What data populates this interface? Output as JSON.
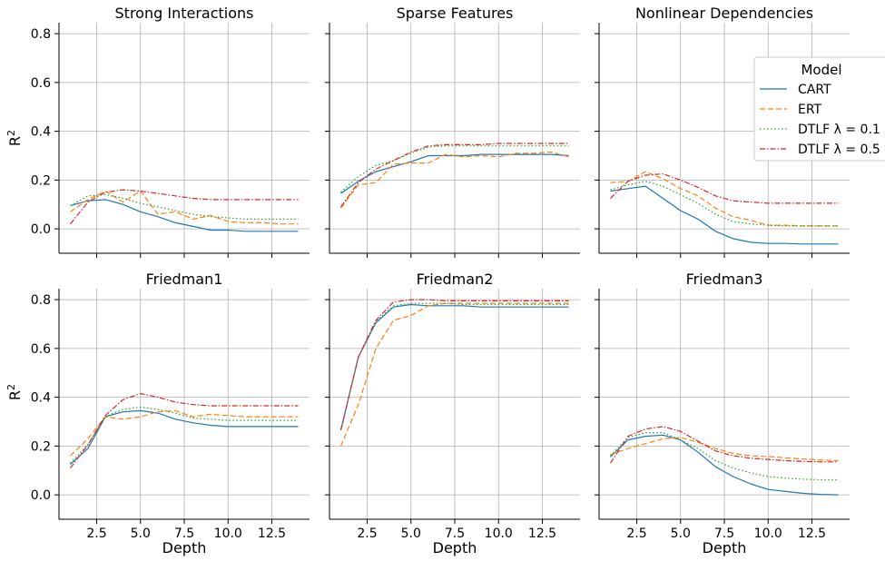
{
  "colors": {
    "CART": "#1f77b4",
    "ERT": "#ff7f0e",
    "DTLF01": "#2ca02c",
    "DTLF05": "#d62728"
  },
  "y_label": "R²",
  "x_label": "Depth",
  "legend": {
    "title": "Model",
    "placement": "upper-right of Nonlinear Dependencies panel",
    "entries": [
      "CART",
      "ERT",
      "DTLF λ = 0.1",
      "DTLF λ = 0.5"
    ]
  },
  "chart_data": [
    {
      "type": "line",
      "title": "Strong Interactions",
      "xlabel": "",
      "ylabel": "R²",
      "xlim": [
        0.35,
        14.65
      ],
      "ylim": [
        -0.1,
        0.845
      ],
      "xticks": [
        "2.5",
        "5.0",
        "7.5",
        "10.0",
        "12.5"
      ],
      "yticks": [
        "0.0",
        "0.2",
        "0.4",
        "0.6",
        "0.8"
      ],
      "x": [
        1,
        2,
        3,
        4,
        5,
        6,
        7,
        8,
        9,
        10,
        11,
        12,
        13,
        14
      ],
      "series": [
        {
          "name": "CART",
          "values": [
            0.095,
            0.115,
            0.12,
            0.1,
            0.07,
            0.05,
            0.025,
            0.01,
            -0.005,
            -0.005,
            -0.01,
            -0.01,
            -0.01,
            -0.01
          ]
        },
        {
          "name": "ERT",
          "values": [
            0.07,
            0.12,
            0.155,
            0.11,
            0.155,
            0.06,
            0.07,
            0.04,
            0.055,
            0.03,
            0.025,
            0.025,
            0.02,
            0.02
          ]
        },
        {
          "name": "DTLF λ = 0.1",
          "values": [
            0.095,
            0.135,
            0.14,
            0.125,
            0.105,
            0.09,
            0.075,
            0.06,
            0.05,
            0.045,
            0.04,
            0.04,
            0.04,
            0.04
          ]
        },
        {
          "name": "DTLF λ = 0.5",
          "values": [
            0.02,
            0.11,
            0.15,
            0.16,
            0.155,
            0.145,
            0.135,
            0.125,
            0.12,
            0.12,
            0.12,
            0.12,
            0.12,
            0.12
          ]
        }
      ]
    },
    {
      "type": "line",
      "title": "Sparse Features",
      "xlabel": "",
      "ylabel": "",
      "xlim": [
        0.35,
        14.65
      ],
      "ylim": [
        -0.1,
        0.845
      ],
      "xticks": [
        "2.5",
        "5.0",
        "7.5",
        "10.0",
        "12.5"
      ],
      "yticks": [
        "0.0",
        "0.2",
        "0.4",
        "0.6",
        "0.8"
      ],
      "x": [
        1,
        2,
        3,
        4,
        5,
        6,
        7,
        8,
        9,
        10,
        11,
        12,
        13,
        14
      ],
      "series": [
        {
          "name": "CART",
          "values": [
            0.145,
            0.195,
            0.235,
            0.255,
            0.275,
            0.3,
            0.3,
            0.3,
            0.305,
            0.305,
            0.305,
            0.305,
            0.305,
            0.3
          ]
        },
        {
          "name": "ERT",
          "values": [
            0.085,
            0.18,
            0.19,
            0.265,
            0.27,
            0.27,
            0.305,
            0.295,
            0.3,
            0.295,
            0.31,
            0.31,
            0.315,
            0.295
          ]
        },
        {
          "name": "DTLF λ = 0.1",
          "values": [
            0.15,
            0.215,
            0.26,
            0.28,
            0.31,
            0.335,
            0.34,
            0.34,
            0.34,
            0.34,
            0.34,
            0.34,
            0.34,
            0.34
          ]
        },
        {
          "name": "DTLF λ = 0.5",
          "values": [
            0.09,
            0.19,
            0.245,
            0.28,
            0.315,
            0.34,
            0.345,
            0.345,
            0.345,
            0.35,
            0.35,
            0.35,
            0.35,
            0.35
          ]
        }
      ]
    },
    {
      "type": "line",
      "title": "Nonlinear Dependencies",
      "xlabel": "",
      "ylabel": "",
      "xlim": [
        0.35,
        14.65
      ],
      "ylim": [
        -0.1,
        0.845
      ],
      "xticks": [
        "2.5",
        "5.0",
        "7.5",
        "10.0",
        "12.5"
      ],
      "yticks": [
        "0.0",
        "0.2",
        "0.4",
        "0.6",
        "0.8"
      ],
      "x": [
        1,
        2,
        3,
        4,
        5,
        6,
        7,
        8,
        9,
        10,
        11,
        12,
        13,
        14
      ],
      "series": [
        {
          "name": "CART",
          "values": [
            0.155,
            0.165,
            0.175,
            0.125,
            0.075,
            0.04,
            -0.01,
            -0.04,
            -0.055,
            -0.06,
            -0.06,
            -0.062,
            -0.062,
            -0.062
          ]
        },
        {
          "name": "ERT",
          "values": [
            0.19,
            0.195,
            0.235,
            0.205,
            0.165,
            0.135,
            0.085,
            0.05,
            0.035,
            0.015,
            0.015,
            0.012,
            0.012,
            0.012
          ]
        },
        {
          "name": "DTLF λ = 0.1",
          "values": [
            0.16,
            0.18,
            0.195,
            0.175,
            0.14,
            0.105,
            0.06,
            0.03,
            0.02,
            0.015,
            0.012,
            0.012,
            0.012,
            0.012
          ]
        },
        {
          "name": "DTLF λ = 0.5",
          "values": [
            0.125,
            0.195,
            0.22,
            0.225,
            0.2,
            0.17,
            0.135,
            0.115,
            0.11,
            0.105,
            0.105,
            0.105,
            0.105,
            0.105
          ]
        }
      ]
    },
    {
      "type": "line",
      "title": "Friedman1",
      "xlabel": "Depth",
      "ylabel": "R²",
      "xlim": [
        0.35,
        14.65
      ],
      "ylim": [
        -0.1,
        0.845
      ],
      "xticks": [
        "2.5",
        "5.0",
        "7.5",
        "10.0",
        "12.5"
      ],
      "yticks": [
        "0.0",
        "0.2",
        "0.4",
        "0.6",
        "0.8"
      ],
      "x": [
        1,
        2,
        3,
        4,
        5,
        6,
        7,
        8,
        9,
        10,
        11,
        12,
        13,
        14
      ],
      "series": [
        {
          "name": "CART",
          "values": [
            0.125,
            0.19,
            0.32,
            0.34,
            0.345,
            0.335,
            0.31,
            0.295,
            0.285,
            0.28,
            0.28,
            0.28,
            0.28,
            0.28
          ]
        },
        {
          "name": "ERT",
          "values": [
            0.16,
            0.23,
            0.32,
            0.31,
            0.32,
            0.34,
            0.345,
            0.32,
            0.33,
            0.325,
            0.32,
            0.32,
            0.32,
            0.32
          ]
        },
        {
          "name": "DTLF λ = 0.1",
          "values": [
            0.13,
            0.205,
            0.32,
            0.35,
            0.36,
            0.35,
            0.335,
            0.315,
            0.31,
            0.305,
            0.305,
            0.305,
            0.305,
            0.305
          ]
        },
        {
          "name": "DTLF λ = 0.5",
          "values": [
            0.11,
            0.205,
            0.325,
            0.39,
            0.415,
            0.4,
            0.38,
            0.37,
            0.365,
            0.365,
            0.365,
            0.365,
            0.365,
            0.365
          ]
        }
      ]
    },
    {
      "type": "line",
      "title": "Friedman2",
      "xlabel": "Depth",
      "ylabel": "",
      "xlim": [
        0.35,
        14.65
      ],
      "ylim": [
        -0.1,
        0.845
      ],
      "xticks": [
        "2.5",
        "5.0",
        "7.5",
        "10.0",
        "12.5"
      ],
      "yticks": [
        "0.0",
        "0.2",
        "0.4",
        "0.6",
        "0.8"
      ],
      "x": [
        1,
        2,
        3,
        4,
        5,
        6,
        7,
        8,
        9,
        10,
        11,
        12,
        13,
        14
      ],
      "series": [
        {
          "name": "CART",
          "values": [
            0.265,
            0.565,
            0.705,
            0.77,
            0.78,
            0.775,
            0.775,
            0.775,
            0.77,
            0.77,
            0.77,
            0.77,
            0.77,
            0.77
          ]
        },
        {
          "name": "ERT",
          "values": [
            0.2,
            0.37,
            0.6,
            0.715,
            0.735,
            0.775,
            0.785,
            0.785,
            0.785,
            0.785,
            0.785,
            0.785,
            0.785,
            0.785
          ]
        },
        {
          "name": "DTLF λ = 0.1",
          "values": [
            0.265,
            0.565,
            0.71,
            0.775,
            0.785,
            0.785,
            0.785,
            0.78,
            0.78,
            0.78,
            0.78,
            0.78,
            0.78,
            0.78
          ]
        },
        {
          "name": "DTLF λ = 0.5",
          "values": [
            0.265,
            0.565,
            0.715,
            0.79,
            0.8,
            0.8,
            0.795,
            0.795,
            0.795,
            0.795,
            0.795,
            0.795,
            0.795,
            0.795
          ]
        }
      ]
    },
    {
      "type": "line",
      "title": "Friedman3",
      "xlabel": "Depth",
      "ylabel": "",
      "xlim": [
        0.35,
        14.65
      ],
      "ylim": [
        -0.1,
        0.845
      ],
      "xticks": [
        "2.5",
        "5.0",
        "7.5",
        "10.0",
        "12.5"
      ],
      "yticks": [
        "0.0",
        "0.2",
        "0.4",
        "0.6",
        "0.8"
      ],
      "x": [
        1,
        2,
        3,
        4,
        5,
        6,
        7,
        8,
        9,
        10,
        11,
        12,
        13,
        14
      ],
      "series": [
        {
          "name": "CART",
          "values": [
            0.155,
            0.225,
            0.24,
            0.245,
            0.225,
            0.175,
            0.115,
            0.075,
            0.045,
            0.022,
            0.014,
            0.006,
            0.002,
            0.0
          ]
        },
        {
          "name": "ERT",
          "values": [
            0.165,
            0.19,
            0.21,
            0.23,
            0.235,
            0.215,
            0.19,
            0.17,
            0.16,
            0.157,
            0.152,
            0.147,
            0.143,
            0.14
          ]
        },
        {
          "name": "DTLF λ = 0.1",
          "values": [
            0.16,
            0.235,
            0.255,
            0.255,
            0.225,
            0.19,
            0.14,
            0.11,
            0.09,
            0.075,
            0.068,
            0.064,
            0.062,
            0.062
          ]
        },
        {
          "name": "DTLF λ = 0.5",
          "values": [
            0.13,
            0.24,
            0.27,
            0.28,
            0.26,
            0.22,
            0.18,
            0.16,
            0.15,
            0.145,
            0.14,
            0.137,
            0.135,
            0.135
          ]
        }
      ]
    }
  ]
}
